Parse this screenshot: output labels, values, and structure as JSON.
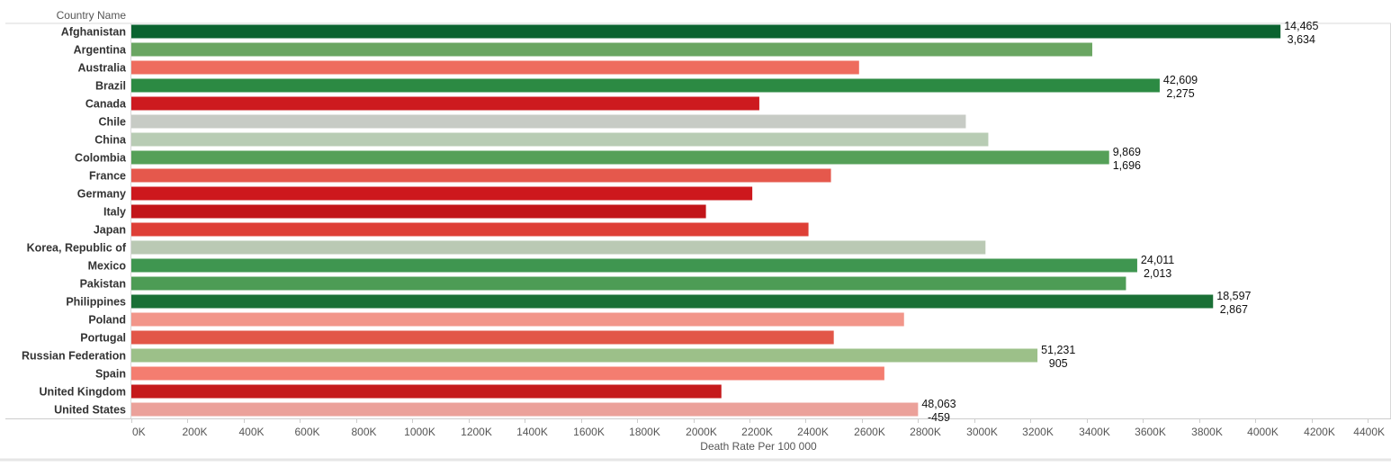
{
  "header": {
    "column_label": "Country Name"
  },
  "chart_data": {
    "type": "bar",
    "orientation": "horizontal",
    "title": "",
    "xlabel": "Death Rate Per 100 000",
    "ylabel": "Country Name",
    "xlim": [
      0,
      4400000
    ],
    "x_ticks": [
      0,
      200000,
      400000,
      600000,
      800000,
      1000000,
      1200000,
      1400000,
      1600000,
      1800000,
      2000000,
      2200000,
      2400000,
      2600000,
      2800000,
      3000000,
      3200000,
      3400000,
      3600000,
      3800000,
      4000000,
      4200000,
      4400000
    ],
    "x_tick_labels": [
      "0K",
      "200K",
      "400K",
      "600K",
      "800K",
      "1000K",
      "1200K",
      "1400K",
      "1600K",
      "1800K",
      "2000K",
      "2200K",
      "2400K",
      "2600K",
      "2800K",
      "3000K",
      "3200K",
      "3400K",
      "3600K",
      "3800K",
      "4000K",
      "4200K",
      "4400K"
    ],
    "grid": false,
    "categories": [
      "Afghanistan",
      "Argentina",
      "Australia",
      "Brazil",
      "Canada",
      "Chile",
      "China",
      "Colombia",
      "France",
      "Germany",
      "Italy",
      "Japan",
      "Korea, Republic of",
      "Mexico",
      "Pakistan",
      "Philippines",
      "Poland",
      "Portugal",
      "Russian Federation",
      "Spain",
      "United Kingdom",
      "United States"
    ],
    "values": [
      4090000,
      3420000,
      2590000,
      3660000,
      2235000,
      2970000,
      3050000,
      3480000,
      2490000,
      2210000,
      2045000,
      2410000,
      3040000,
      3580000,
      3540000,
      3850000,
      2750000,
      2500000,
      3225000,
      2680000,
      2100000,
      2800000
    ],
    "bar_colors": [
      "#0b6330",
      "#6aa662",
      "#ee6c5e",
      "#2c8a43",
      "#cd1a1f",
      "#c7cbc5",
      "#b8ccb4",
      "#55a058",
      "#e5584c",
      "#cd181d",
      "#c21519",
      "#de3f36",
      "#bac9b4",
      "#3f9650",
      "#4d9c55",
      "#1a7036",
      "#f2968a",
      "#e25648",
      "#9cc089",
      "#f47d70",
      "#c51a1c",
      "#eba19a"
    ],
    "annotations": [
      {
        "category": "Afghanistan",
        "lines": [
          "14,465",
          "3,634"
        ]
      },
      {
        "category": "Brazil",
        "lines": [
          "42,609",
          "2,275"
        ]
      },
      {
        "category": "Colombia",
        "lines": [
          "9,869",
          "1,696"
        ]
      },
      {
        "category": "Mexico",
        "lines": [
          "24,011",
          "2,013"
        ]
      },
      {
        "category": "Philippines",
        "lines": [
          "18,597",
          "2,867"
        ]
      },
      {
        "category": "Russian Federation",
        "lines": [
          "51,231",
          "905"
        ]
      },
      {
        "category": "United States",
        "lines": [
          "48,063",
          "-459"
        ]
      }
    ]
  }
}
